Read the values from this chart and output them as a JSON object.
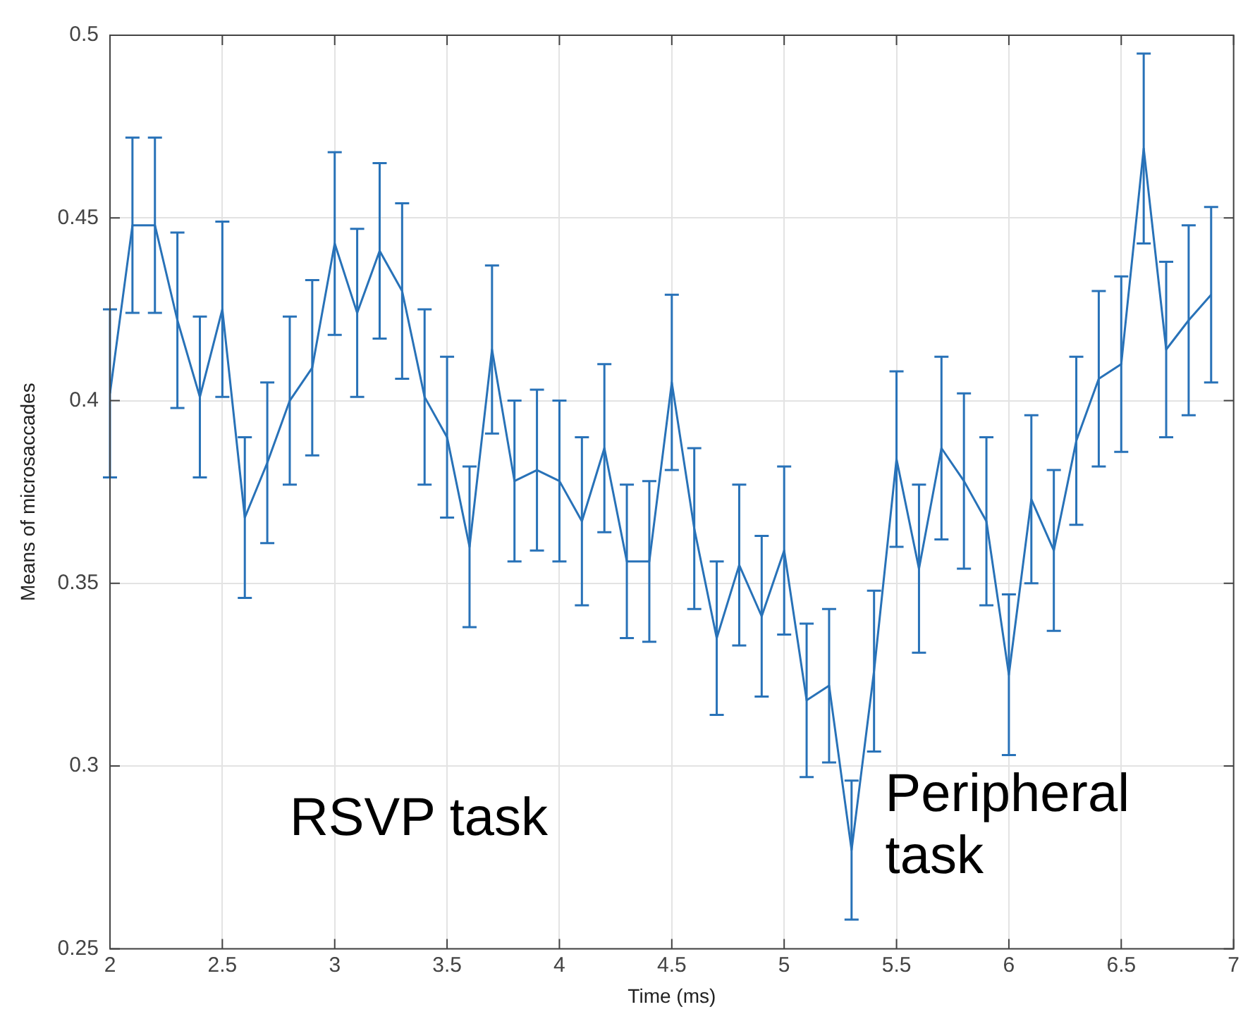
{
  "chart_data": {
    "type": "line",
    "xlabel": "Time (ms)",
    "ylabel": "Means of microsaccades",
    "x": [
      2.0,
      2.1,
      2.2,
      2.3,
      2.4,
      2.5,
      2.6,
      2.7,
      2.8,
      2.9,
      3.0,
      3.1,
      3.2,
      3.3,
      3.4,
      3.5,
      3.6,
      3.7,
      3.8,
      3.9,
      4.0,
      4.1,
      4.2,
      4.3,
      4.4,
      4.5,
      4.6,
      4.7,
      4.8,
      4.9,
      5.0,
      5.1,
      5.2,
      5.3,
      5.4,
      5.5,
      5.6,
      5.7,
      5.8,
      5.9,
      6.0,
      6.1,
      6.2,
      6.3,
      6.4,
      6.5,
      6.6,
      6.7,
      6.8,
      6.9
    ],
    "series": [
      {
        "color": "#2872b8",
        "values": [
          0.402,
          0.448,
          0.448,
          0.422,
          0.401,
          0.425,
          0.368,
          0.383,
          0.4,
          0.409,
          0.443,
          0.424,
          0.441,
          0.43,
          0.401,
          0.39,
          0.36,
          0.414,
          0.378,
          0.381,
          0.378,
          0.367,
          0.387,
          0.356,
          0.356,
          0.405,
          0.365,
          0.335,
          0.355,
          0.341,
          0.359,
          0.318,
          0.322,
          0.277,
          0.326,
          0.384,
          0.354,
          0.387,
          0.378,
          0.367,
          0.325,
          0.373,
          0.359,
          0.389,
          0.406,
          0.41,
          0.469,
          0.414,
          0.422,
          0.429
        ],
        "errors": [
          0.023,
          0.024,
          0.024,
          0.024,
          0.022,
          0.024,
          0.022,
          0.022,
          0.023,
          0.024,
          0.025,
          0.023,
          0.024,
          0.024,
          0.024,
          0.022,
          0.022,
          0.023,
          0.022,
          0.022,
          0.022,
          0.023,
          0.023,
          0.021,
          0.022,
          0.024,
          0.022,
          0.021,
          0.022,
          0.022,
          0.023,
          0.021,
          0.021,
          0.019,
          0.022,
          0.024,
          0.023,
          0.025,
          0.024,
          0.023,
          0.022,
          0.023,
          0.022,
          0.023,
          0.024,
          0.024,
          0.026,
          0.024,
          0.026,
          0.024
        ]
      }
    ],
    "xlim": [
      2,
      7
    ],
    "xticks": [
      2,
      2.5,
      3,
      3.5,
      4,
      4.5,
      5,
      5.5,
      6,
      6.5,
      7
    ],
    "ylim": [
      0.25,
      0.5
    ],
    "yticks": [
      0.25,
      0.3,
      0.35,
      0.4,
      0.45,
      0.5
    ],
    "annotations": [
      "RSVP task",
      "Peripheral task"
    ],
    "grid": true,
    "marker": "none",
    "line_style": "solid"
  }
}
